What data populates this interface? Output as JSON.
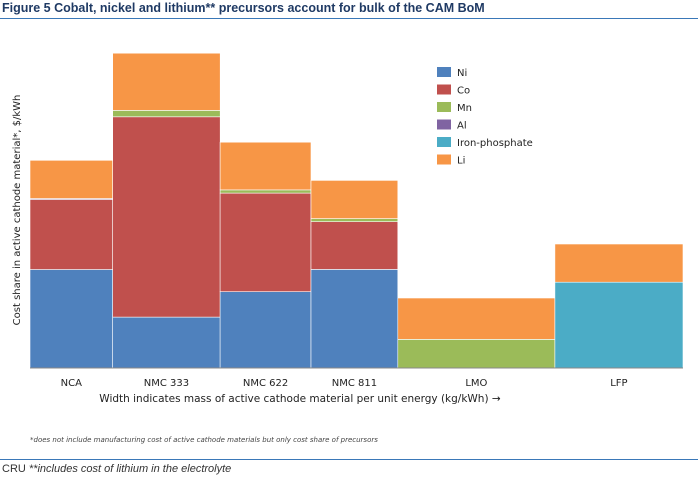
{
  "figure_title": "Figure 5 Cobalt, nickel and lithium** precursors account for bulk of the CAM BoM",
  "footer": {
    "source": "CRU",
    "note": "**includes cost of lithium in the electrolyte"
  },
  "chart_note": "*does not include manufacturing cost of active cathode materials but only cost share of precursors",
  "colors": {
    "Ni": "#4f81bd",
    "Co": "#c0504d",
    "Mn": "#9bbb59",
    "Al": "#8064a2",
    "Iron-phosphate": "#4bacc6",
    "Li": "#f79646"
  },
  "chart_data": {
    "type": "bar",
    "subtype": "variable-width stacked (mekko)",
    "title": "",
    "ylabel": "Cost share in active cathode material*, $/kWh",
    "xlabel": "Width indicates mass of active cathode material per unit energy (kg/kWh) →",
    "ylim": [
      0,
      100
    ],
    "grid": false,
    "legend_position": "top-right",
    "series_order": [
      "Ni",
      "Co",
      "Mn",
      "Al",
      "Iron-phosphate",
      "Li"
    ],
    "categories": [
      {
        "name": "NCA",
        "width": 1.0,
        "segments": {
          "Ni": 31,
          "Co": 22,
          "Mn": 0,
          "Al": 0.3,
          "Iron-phosphate": 0,
          "Li": 12
        }
      },
      {
        "name": "NMC 333",
        "width": 1.3,
        "segments": {
          "Ni": 16,
          "Co": 63,
          "Mn": 2,
          "Al": 0,
          "Iron-phosphate": 0,
          "Li": 18
        }
      },
      {
        "name": "NMC 622",
        "width": 1.1,
        "segments": {
          "Ni": 24,
          "Co": 31,
          "Mn": 1,
          "Al": 0,
          "Iron-phosphate": 0,
          "Li": 15
        }
      },
      {
        "name": "NMC 811",
        "width": 1.05,
        "segments": {
          "Ni": 31,
          "Co": 15,
          "Mn": 1,
          "Al": 0,
          "Iron-phosphate": 0,
          "Li": 12
        }
      },
      {
        "name": "LMO",
        "width": 1.9,
        "segments": {
          "Ni": 0,
          "Co": 0,
          "Mn": 9,
          "Al": 0,
          "Iron-phosphate": 0,
          "Li": 13
        }
      },
      {
        "name": "LFP",
        "width": 1.55,
        "segments": {
          "Ni": 0,
          "Co": 0,
          "Mn": 0,
          "Al": 0,
          "Iron-phosphate": 27,
          "Li": 12
        }
      }
    ]
  }
}
